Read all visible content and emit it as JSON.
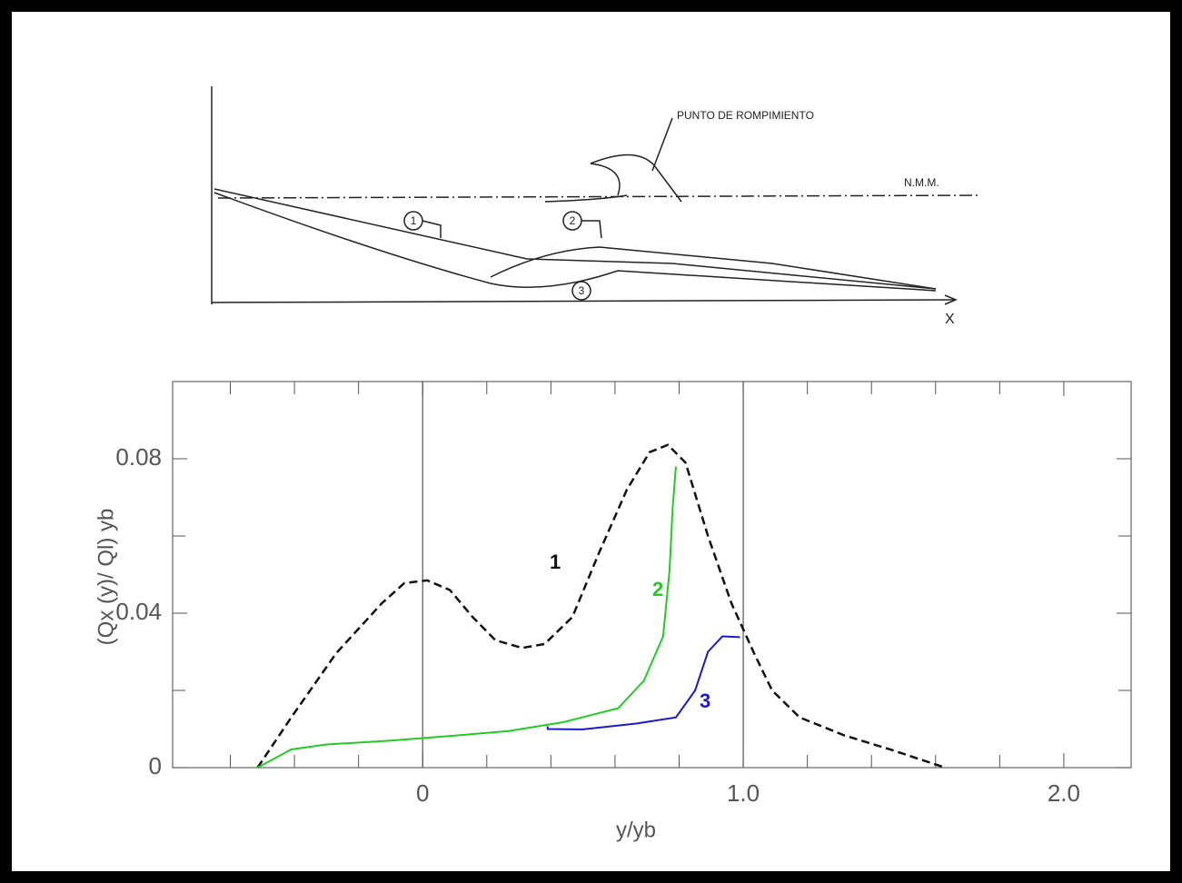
{
  "sketch": {
    "break_label": "PUNTO DE ROMPIMIENTO",
    "level_label": "N.M.M.",
    "axis_label": "X",
    "profile_labels": [
      "1",
      "2",
      "3"
    ]
  },
  "chart_data": {
    "type": "line",
    "xlabel": "y/yb",
    "ylabel": "(Qx (y)/ Ql) yb",
    "xlim": [
      -0.78,
      2.21
    ],
    "ylim": [
      0,
      0.1
    ],
    "xticks": [
      {
        "value": 0,
        "label": "0"
      },
      {
        "value": 1,
        "label": "1.0"
      },
      {
        "value": 2,
        "label": "2.0"
      }
    ],
    "xminorticks": [
      -0.6,
      -0.4,
      -0.2,
      0.2,
      0.4,
      0.6,
      0.8,
      1.2,
      1.4,
      1.6,
      1.8
    ],
    "yticks": [
      0,
      0.04,
      0.08
    ],
    "yminorticks": [
      0.02,
      0.06
    ],
    "vlines": [
      0,
      1
    ],
    "series": [
      {
        "name": "1",
        "color": "#111111",
        "dash": true,
        "x": [
          -0.515,
          -0.41,
          -0.27,
          -0.127,
          -0.057,
          0.014,
          0.085,
          0.156,
          0.227,
          0.31,
          0.38,
          0.467,
          0.55,
          0.637,
          0.708,
          0.765,
          0.82,
          0.89,
          0.963,
          1.034,
          1.09,
          1.176,
          1.317,
          1.459,
          1.63
        ],
        "values": [
          0,
          0.013,
          0.0296,
          0.0426,
          0.0478,
          0.0485,
          0.046,
          0.039,
          0.033,
          0.031,
          0.032,
          0.039,
          0.0556,
          0.072,
          0.0817,
          0.0836,
          0.079,
          0.06,
          0.0426,
          0.0296,
          0.02,
          0.013,
          0.0083,
          0.0047,
          0
        ]
      },
      {
        "name": "2",
        "color": "#22cc22",
        "dash": false,
        "x": [
          -0.515,
          -0.41,
          -0.3,
          -0.1,
          0.1,
          0.27,
          0.44,
          0.61,
          0.69,
          0.75,
          0.77,
          0.78,
          0.79
        ],
        "values": [
          0,
          0.0047,
          0.006,
          0.007,
          0.0083,
          0.0095,
          0.0118,
          0.0154,
          0.0225,
          0.034,
          0.051,
          0.0675,
          0.078
        ]
      },
      {
        "name": "3",
        "color": "#1a1acc",
        "dash": false,
        "x": [
          0.39,
          0.39,
          0.5,
          0.666,
          0.79,
          0.85,
          0.89,
          0.935,
          0.99
        ],
        "values": [
          0.0107,
          0.01,
          0.0099,
          0.0114,
          0.013,
          0.02,
          0.03,
          0.034,
          0.0338
        ]
      }
    ]
  }
}
